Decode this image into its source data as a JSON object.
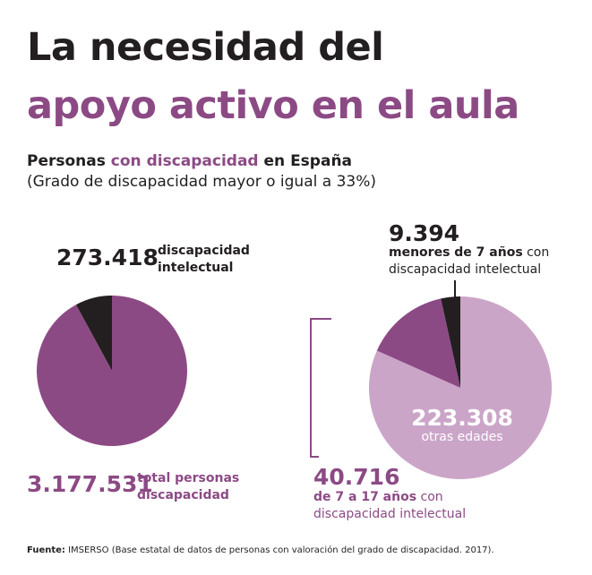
{
  "title": {
    "line1": "La necesidad del",
    "line2": "apoyo activo en el aula"
  },
  "subtitle": {
    "part1": "Personas",
    "part2": "con discapacidad",
    "part3": "en España",
    "line2": "(Grado de discapacidad mayor o igual a 33%)"
  },
  "colors": {
    "dark": "#231f20",
    "purple": "#8c4a85",
    "light_purple": "#cba5c8"
  },
  "chart_data": [
    {
      "type": "pie",
      "slices": [
        {
          "label": "discapacidad intelectual",
          "value": 273418,
          "display": "273.418",
          "color": "#231f20"
        },
        {
          "label": "total personas discapacidad",
          "value": 3177531,
          "display": "3.177.531",
          "color": "#8c4a85"
        }
      ],
      "labels": {
        "small_value": "273.418",
        "small_text1": "discapacidad",
        "small_text2": "intelectual",
        "total_value": "3.177.531",
        "total_text1": "total personas",
        "total_text2": "discapacidad"
      }
    },
    {
      "type": "pie",
      "slices": [
        {
          "label": "menores de 7 años con discapacidad intelectual",
          "value": 9394,
          "display": "9.394",
          "color": "#231f20"
        },
        {
          "label": "otras edades",
          "value": 223308,
          "display": "223.308",
          "color": "#cba5c8"
        },
        {
          "label": "de 7 a 17 años con discapacidad intelectual",
          "value": 40716,
          "display": "40.716",
          "color": "#8c4a85"
        }
      ],
      "labels": {
        "under7_value": "9.394",
        "under7_bold": "menores de 7 años",
        "under7_con": "con",
        "under7_line2": "discapacidad intelectual",
        "other_value": "223.308",
        "other_text": "otras edades",
        "age_value": "40.716",
        "age_bold": "de 7 a 17 años",
        "age_con": "con",
        "age_line2": "discapacidad intelectual"
      }
    }
  ],
  "source": {
    "label": "Fuente:",
    "text": "IMSERSO (Base estatal de datos de personas con valoración del grado de discapacidad. 2017)."
  }
}
